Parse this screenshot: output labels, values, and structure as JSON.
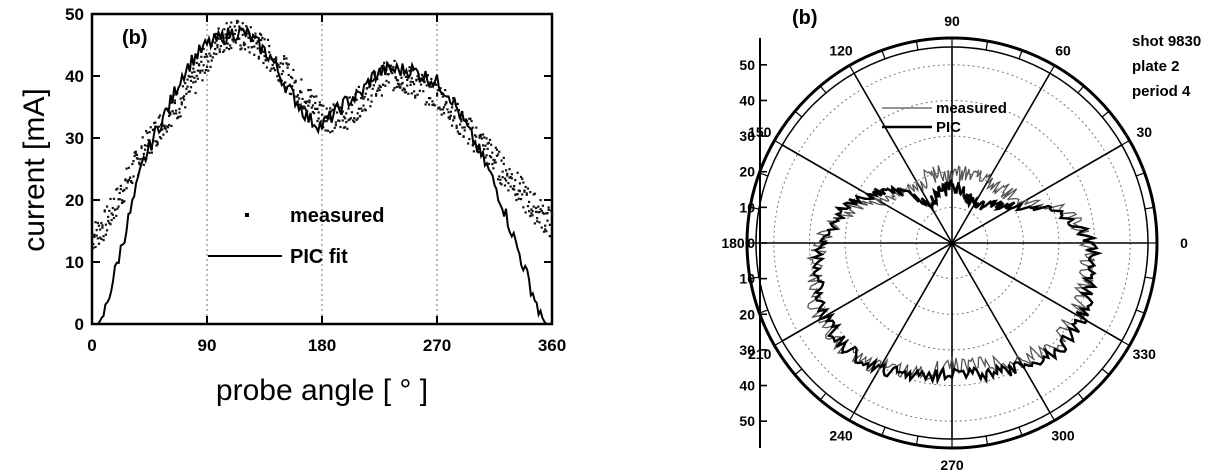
{
  "chart_data": [
    {
      "type": "scatter",
      "panel_label": "(b)",
      "xlabel": "probe angle  [ ° ]",
      "ylabel": "current  [mA]",
      "xlim": [
        0,
        360
      ],
      "ylim": [
        0,
        50
      ],
      "x_ticks": [
        "0",
        "90",
        "180",
        "270",
        "360"
      ],
      "y_ticks": [
        "0",
        "10",
        "20",
        "30",
        "40",
        "50"
      ],
      "grid": "dotted vertical lines at 90, 180, 270",
      "legend_placement": "center-right",
      "series": [
        {
          "name": "measured",
          "style": "points",
          "x": [
            0,
            10,
            20,
            30,
            40,
            50,
            60,
            70,
            80,
            90,
            100,
            110,
            120,
            130,
            140,
            150,
            160,
            170,
            180,
            190,
            200,
            210,
            220,
            230,
            240,
            250,
            260,
            270,
            280,
            290,
            300,
            310,
            320,
            330,
            340,
            350,
            360
          ],
          "y": [
            14,
            16,
            20,
            24,
            28,
            31,
            34,
            36,
            39,
            43,
            46,
            47,
            46,
            45,
            43,
            41,
            38,
            36,
            34,
            33,
            34,
            36,
            38,
            40,
            40,
            39,
            38,
            37,
            35,
            32,
            30,
            28,
            25,
            23,
            20,
            18,
            16
          ]
        },
        {
          "name": "PIC fit",
          "style": "line",
          "x": [
            0,
            5,
            10,
            20,
            30,
            40,
            50,
            60,
            70,
            80,
            90,
            100,
            110,
            120,
            130,
            140,
            150,
            160,
            170,
            180,
            190,
            200,
            210,
            220,
            230,
            240,
            250,
            260,
            270,
            280,
            290,
            300,
            310,
            320,
            330,
            340,
            350,
            355,
            360
          ],
          "y": [
            0,
            0,
            2,
            10,
            18,
            26,
            31,
            35,
            40,
            43,
            45,
            46,
            47,
            47,
            45,
            43,
            39,
            36,
            33,
            32,
            34,
            36,
            37,
            40,
            41,
            41,
            41,
            40,
            39,
            37,
            33,
            29,
            25,
            20,
            14,
            8,
            2,
            0,
            0
          ]
        }
      ]
    },
    {
      "type": "polar",
      "panel_label": "(b)",
      "annotations": [
        "shot 9830",
        "plate 2",
        "period 4"
      ],
      "angle_ticks": [
        "0",
        "30",
        "60",
        "90",
        "120",
        "150",
        "180",
        "210",
        "240",
        "270",
        "300",
        "330"
      ],
      "radial_ticks_upper": [
        "0",
        "10",
        "20",
        "30",
        "40",
        "50"
      ],
      "radial_ticks_lower": [
        "10",
        "20",
        "30",
        "40",
        "50"
      ],
      "rlim": [
        0,
        55
      ],
      "legend_placement": "upper-center",
      "series": [
        {
          "name": "measured",
          "style": "thin line",
          "theta": [
            0,
            15,
            30,
            45,
            60,
            75,
            90,
            105,
            120,
            135,
            150,
            165,
            180,
            195,
            210,
            225,
            240,
            255,
            270,
            285,
            300,
            315,
            330,
            345,
            360
          ],
          "r": [
            38,
            34,
            22,
            21,
            20,
            20,
            19,
            20,
            19,
            21,
            24,
            31,
            37,
            40,
            43,
            42,
            40,
            38,
            34,
            35,
            38,
            40,
            40,
            39,
            38
          ]
        },
        {
          "name": "PIC",
          "style": "thick line",
          "theta": [
            0,
            15,
            30,
            45,
            60,
            75,
            90,
            105,
            120,
            135,
            150,
            165,
            180,
            195,
            210,
            225,
            240,
            255,
            270,
            285,
            300,
            315,
            330,
            345,
            360
          ],
          "r": [
            39,
            32,
            20,
            15,
            12,
            14,
            16,
            14,
            12,
            20,
            27,
            33,
            36,
            39,
            41,
            42,
            41,
            38,
            36,
            38,
            40,
            42,
            42,
            40,
            39
          ]
        }
      ]
    }
  ]
}
